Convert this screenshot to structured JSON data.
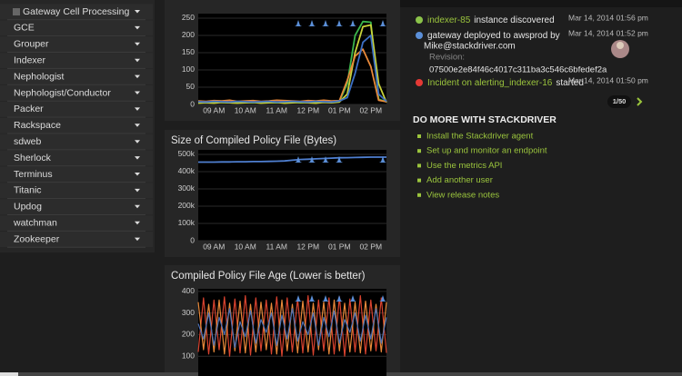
{
  "sidebar": {
    "items": [
      "Gateway Cell Processing",
      "GCE",
      "Grouper",
      "Indexer",
      "Nephologist",
      "Nephologist/Conductor",
      "Packer",
      "Rackspace",
      "sdweb",
      "Sherlock",
      "Terminus",
      "Titanic",
      "Updog",
      "watchman",
      "Zookeeper"
    ]
  },
  "chart_data": [
    {
      "type": "line",
      "categories": [
        null,
        null,
        "09 AM",
        null,
        null,
        null,
        "10 AM",
        null,
        null,
        null,
        "11 AM",
        null,
        null,
        null,
        "12 PM",
        null,
        null,
        null,
        "01 PM",
        null,
        null,
        null,
        "02 PM",
        null,
        null
      ],
      "series": [
        {
          "color": "#3bb54a",
          "values": [
            6,
            5,
            7,
            6,
            5,
            8,
            6,
            5,
            7,
            6,
            5,
            6,
            7,
            5,
            6,
            8,
            7,
            6,
            9,
            60,
            200,
            240,
            238,
            15,
            8
          ]
        },
        {
          "color": "#c8d43a",
          "values": [
            4,
            5,
            4,
            6,
            5,
            4,
            5,
            6,
            4,
            5,
            6,
            4,
            5,
            6,
            5,
            4,
            6,
            5,
            7,
            30,
            150,
            225,
            230,
            60,
            6
          ]
        },
        {
          "color": "#e8893a",
          "values": [
            10,
            9,
            11,
            10,
            12,
            9,
            10,
            11,
            9,
            10,
            12,
            11,
            10,
            9,
            11,
            10,
            12,
            10,
            11,
            70,
            140,
            160,
            110,
            12,
            8
          ]
        },
        {
          "color": "#3c6fc4",
          "values": [
            8,
            7,
            9,
            8,
            7,
            9,
            8,
            7,
            8,
            9,
            7,
            8,
            9,
            8,
            7,
            9,
            8,
            7,
            10,
            20,
            90,
            180,
            200,
            30,
            9
          ]
        }
      ],
      "ylim": [
        0,
        263
      ],
      "yticks": [
        0,
        50,
        100,
        150,
        200,
        250
      ],
      "grid": true
    },
    {
      "type": "line",
      "title": "Size of Compiled Policy File (Bytes)",
      "categories": [
        null,
        null,
        "09 AM",
        null,
        null,
        null,
        "10 AM",
        null,
        null,
        null,
        "11 AM",
        null,
        null,
        null,
        "12 PM",
        null,
        null,
        null,
        "01 PM",
        null,
        null,
        null,
        "02 PM",
        null,
        null
      ],
      "series": [
        {
          "color": "#4f7fd0",
          "values": [
            455000,
            455000,
            455000,
            456000,
            456000,
            457000,
            457000,
            458000,
            458000,
            459000,
            460000,
            462000,
            466000,
            470000,
            472000,
            474000,
            476000,
            478000,
            480000,
            481000,
            482000,
            483000,
            484000,
            484000,
            484000
          ]
        }
      ],
      "ylim": [
        0,
        526000
      ],
      "yticks": [
        0,
        {
          "value": 100000,
          "label": "100k"
        },
        {
          "value": 200000,
          "label": "200k"
        },
        {
          "value": 300000,
          "label": "300k"
        },
        {
          "value": 400000,
          "label": "400k"
        },
        {
          "value": 500000,
          "label": "500k"
        }
      ],
      "grid": true
    },
    {
      "type": "line",
      "title": "Compiled Policy File Age (Lower is better)",
      "series": [
        {
          "color": "#d9432f",
          "values": [
            120,
            370,
            110,
            360,
            130,
            375,
            100,
            365,
            115,
            380,
            105,
            370,
            125,
            360,
            110,
            375,
            100,
            370,
            120,
            365,
            115,
            380,
            105,
            360,
            125,
            370,
            110,
            375,
            100,
            365,
            120,
            380,
            110,
            360,
            125,
            370,
            115
          ]
        },
        {
          "color": "#e8893a",
          "values": [
            350,
            130,
            340,
            120,
            360,
            110,
            345,
            125,
            355,
            115,
            340,
            120,
            350,
            130,
            345,
            110,
            360,
            125,
            340,
            115,
            355,
            120,
            345,
            130,
            350,
            110,
            360,
            125,
            345,
            120,
            350,
            115,
            355,
            125,
            340,
            120,
            350
          ]
        },
        {
          "color": "#4a6fb5",
          "values": [
            250,
            180,
            300,
            150,
            280,
            200,
            320,
            140,
            260,
            190,
            310,
            160,
            270,
            210,
            300,
            150,
            290,
            180,
            320,
            170,
            260,
            200,
            300,
            150,
            280,
            190,
            310,
            160,
            270,
            210,
            300,
            170,
            290,
            180,
            320,
            160,
            280
          ]
        }
      ],
      "ylim": [
        0,
        412
      ],
      "yticks": [
        100,
        200,
        300,
        400
      ],
      "grid": true
    }
  ],
  "events": {
    "items": [
      {
        "link": "indexer-85",
        "text": "instance discovered",
        "time": "Mar 14, 2014 01:56 pm"
      },
      {
        "text": "gateway deployed to awsprod by",
        "user": "Mike@stackdriver.com",
        "time": "Mar 14, 2014 01:52 pm",
        "revision_label": "Revision:",
        "revision": "07500e2e84f46c4017c311ba3c546c6bfedef2a"
      },
      {
        "link": "Incident on alerting_indexer-16",
        "text": "started",
        "time": "Mar 14, 2014 01:50 pm"
      }
    ],
    "pager": "1/50"
  },
  "promo": {
    "title": "DO MORE WITH STACKDRIVER",
    "links": [
      "Install the Stackdriver agent",
      "Set up and monitor an endpoint",
      "Use the metrics API",
      "Add another user",
      "View release notes"
    ]
  }
}
